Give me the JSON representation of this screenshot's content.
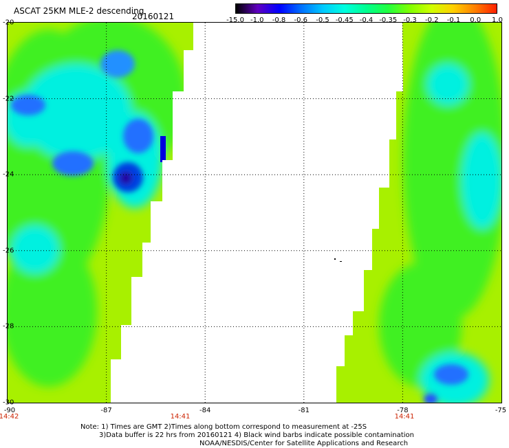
{
  "header": {
    "title": "ASCAT 25KM MLE-2 descending",
    "date": "20160121"
  },
  "colorbar": {
    "labels": [
      "-15.0",
      "-1.0",
      "-0.8",
      "-0.6",
      "-0.5",
      "-0.45",
      "-0.4",
      "-0.35",
      "-0.3",
      "-0.2",
      "-0.1",
      "0.0",
      "1.0"
    ],
    "colors": [
      "#000000",
      "#6000c0",
      "#0000ff",
      "#0070ff",
      "#00c8ff",
      "#00ffe0",
      "#00ff90",
      "#20ff40",
      "#80ff00",
      "#d0ff00",
      "#ffd000",
      "#ff8000",
      "#ff2000"
    ]
  },
  "map": {
    "lat_labels": [
      "-20",
      "-22",
      "-24",
      "-26",
      "-28",
      "-30"
    ],
    "lon_labels": [
      "-90",
      "-87",
      "-84",
      "-81",
      "-78",
      "-75"
    ],
    "time_labels": [
      "14:42",
      "14:41",
      "14:41"
    ],
    "lon_range": [
      -90,
      -75
    ],
    "lat_range": [
      -20,
      -30
    ],
    "swath_colors": {
      "base": "#a8f000",
      "green": "#40f020",
      "cyan": "#00f0e0",
      "blue": "#2070ff",
      "deep_blue": "#0000e0"
    }
  },
  "notes": {
    "line1": "Note: 1) Times are GMT 2)Times along bottom correspond to measurement at -25S",
    "line2": "3)Data buffer is 22 hrs from 20160121 4) Black wind barbs indicate possible contamination",
    "line3": "NOAA/NESDIS/Center for Satellite Applications and Research"
  }
}
